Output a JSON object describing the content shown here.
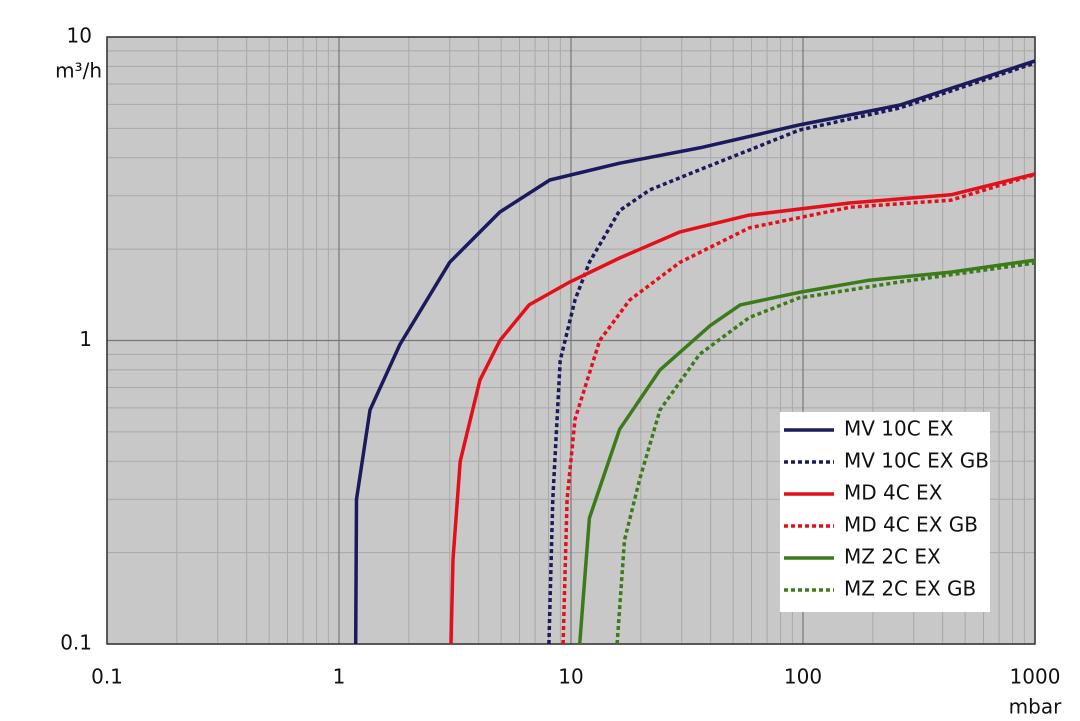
{
  "chart_data": {
    "type": "line",
    "x_label": "mbar",
    "y_label": "m³/h",
    "xlim": [
      0.1,
      1000
    ],
    "ylim": [
      0.1,
      10
    ],
    "xticks": [
      0.1,
      1,
      10,
      100,
      1000
    ],
    "yticks": [
      0.1,
      1,
      10
    ],
    "xscale": "log",
    "yscale": "log",
    "grid": true,
    "legend": "lower right",
    "series": [
      {
        "name": "MV 10C EX",
        "color": "#1b1a5c",
        "linestyle": "solid",
        "x": [
          1.18,
          1.19,
          1.36,
          1.83,
          3.0,
          4.94,
          8.1,
          16.2,
          35.8,
          96,
          262,
          1000
        ],
        "values": [
          0.1,
          0.3,
          0.59,
          0.97,
          1.81,
          2.65,
          3.38,
          3.84,
          4.31,
          5.13,
          5.97,
          8.34
        ]
      },
      {
        "name": "MV 10C EX GB",
        "color": "#1b1a5c",
        "linestyle": "dotted",
        "x": [
          8.03,
          8.35,
          8.98,
          10.4,
          12.0,
          16.2,
          21.8,
          35.8,
          58.6,
          96,
          262,
          1000
        ],
        "values": [
          0.1,
          0.3,
          0.86,
          1.36,
          1.81,
          2.68,
          3.13,
          3.65,
          4.24,
          4.93,
          5.84,
          8.21
        ]
      },
      {
        "name": "MD 4C EX",
        "color": "#e3101b",
        "linestyle": "solid",
        "x": [
          3.04,
          3.1,
          3.33,
          4.05,
          4.94,
          6.6,
          9.9,
          16.2,
          29.5,
          58.6,
          160,
          434,
          1000
        ],
        "values": [
          0.1,
          0.19,
          0.4,
          0.74,
          1.0,
          1.31,
          1.56,
          1.87,
          2.28,
          2.59,
          2.84,
          3.02,
          3.54
        ]
      },
      {
        "name": "MD 4C EX GB",
        "color": "#e3101b",
        "linestyle": "dotted",
        "x": [
          9.25,
          9.62,
          10.4,
          13.3,
          17.9,
          29.5,
          58.6,
          160,
          434,
          1000
        ],
        "values": [
          0.1,
          0.3,
          0.55,
          1.0,
          1.36,
          1.81,
          2.35,
          2.75,
          2.9,
          3.52
        ]
      },
      {
        "name": "MZ 2C EX",
        "color": "#3d7a1c",
        "linestyle": "solid",
        "x": [
          10.9,
          12.0,
          16.2,
          24.2,
          39.8,
          53.6,
          96,
          193,
          434,
          1000
        ],
        "values": [
          0.1,
          0.26,
          0.51,
          0.8,
          1.12,
          1.31,
          1.44,
          1.58,
          1.68,
          1.84
        ]
      },
      {
        "name": "MZ 2C EX GB",
        "color": "#3d7a1c",
        "linestyle": "dotted",
        "x": [
          15.8,
          17.0,
          19.8,
          24.2,
          35.8,
          58.6,
          96,
          262,
          1000
        ],
        "values": [
          0.1,
          0.22,
          0.35,
          0.59,
          0.9,
          1.19,
          1.38,
          1.56,
          1.8
        ]
      }
    ]
  }
}
